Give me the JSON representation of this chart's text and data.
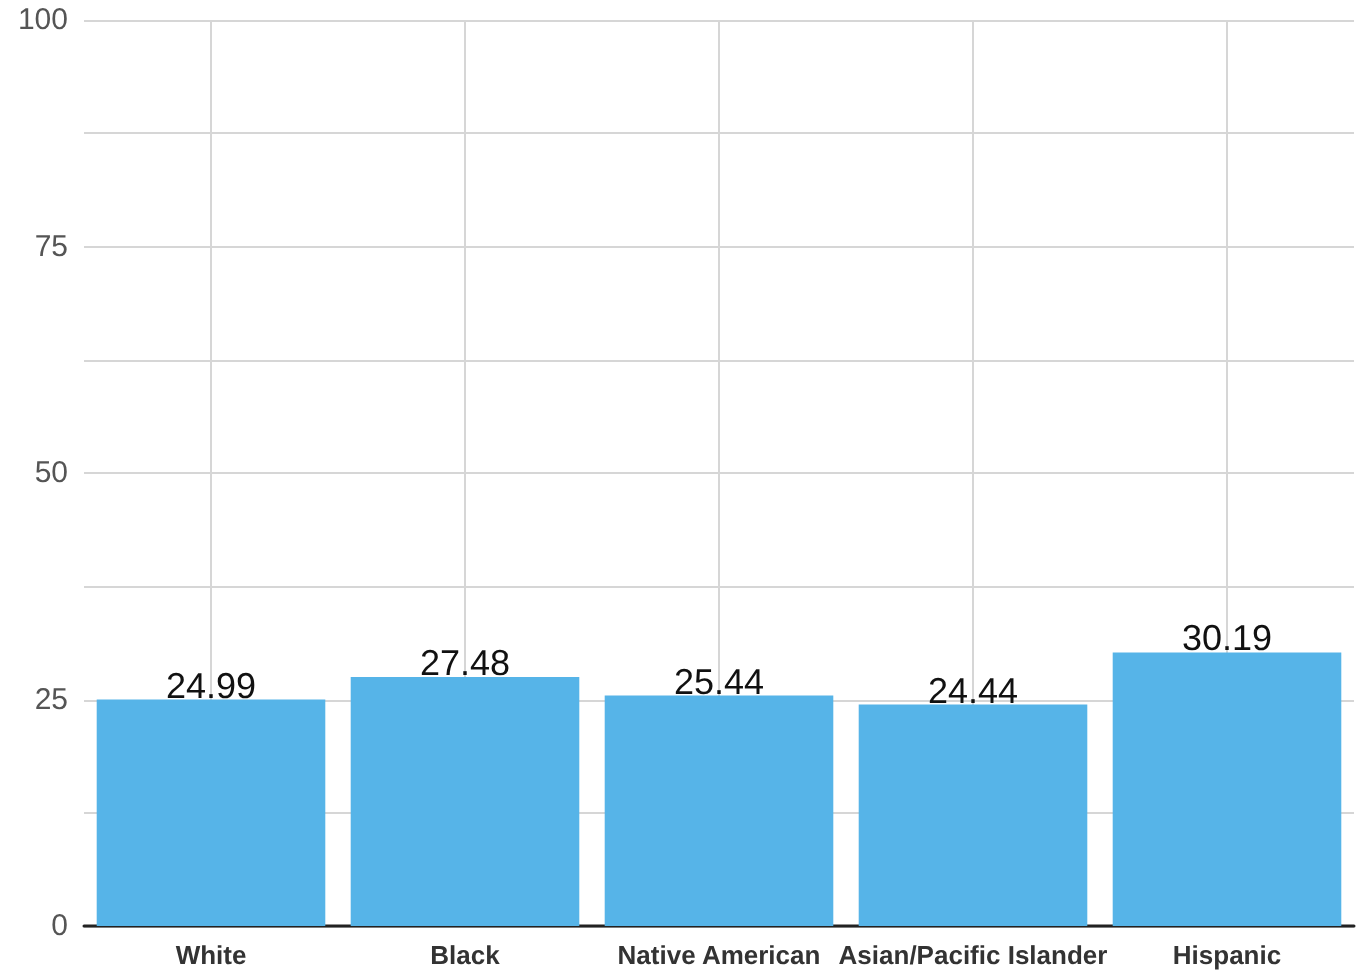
{
  "chart_data": {
    "type": "bar",
    "categories": [
      "White",
      "Black",
      "Native American",
      "Asian/Pacific Islander",
      "Hispanic"
    ],
    "values": [
      24.99,
      27.48,
      25.44,
      24.44,
      30.19
    ],
    "color": "#56b4e8",
    "ylim": [
      0,
      100
    ],
    "yticks": [
      0,
      {
        "value": 12.5,
        "label": null
      },
      25,
      {
        "value": 37.5,
        "label": null
      },
      50,
      {
        "value": 62.5,
        "label": null
      },
      75,
      {
        "value": 87.5,
        "label": null
      },
      100
    ],
    "grid": true,
    "data_labels": true
  }
}
